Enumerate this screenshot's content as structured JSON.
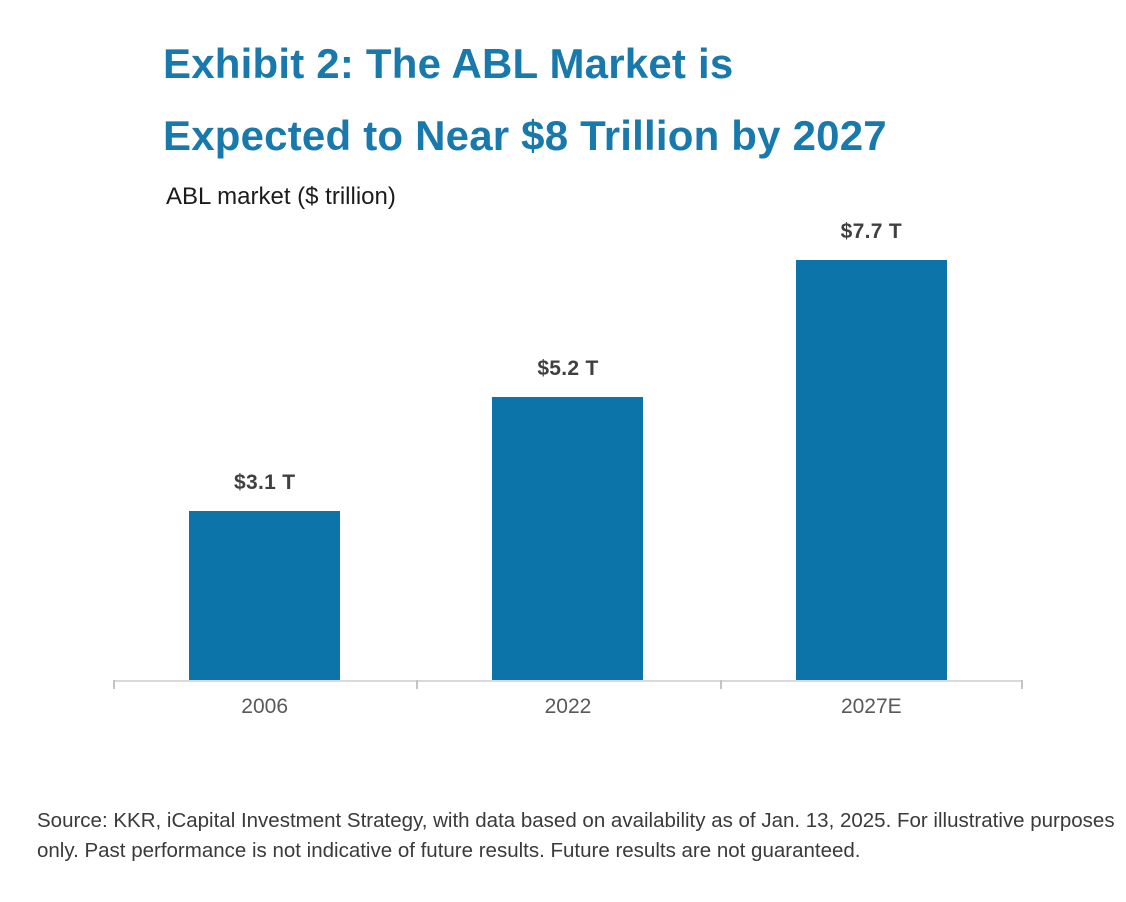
{
  "header": {
    "title_line1": "Exhibit 2: The ABL Market is",
    "title_line2": "Expected to Near $8 Trillion by 2027"
  },
  "chart_data": {
    "type": "bar",
    "title": "Exhibit 2: The ABL Market is Expected to Near $8 Trillion by 2027",
    "subtitle": "ABL market ($ trillion)",
    "categories": [
      "2006",
      "2022",
      "2027E"
    ],
    "values": [
      3.1,
      5.2,
      7.7
    ],
    "value_labels": [
      "$3.1 T",
      "$5.2 T",
      "$7.7 T"
    ],
    "xlabel": "",
    "ylabel": "ABL market ($ trillion)",
    "ylim": [
      0,
      8
    ],
    "grid": false,
    "legend": "none",
    "bar_color": "#0d74a9"
  },
  "footer": {
    "source_text": "Source: KKR, iCapital Investment Strategy, with data based on availability as of Jan. 13, 2025. For illustrative purposes only. Past performance is not indicative of future results. Future results are not guaranteed."
  },
  "colors": {
    "title": "#1879ac",
    "bar": "#0d74a9",
    "value_label": "#404040",
    "axis_label": "#595959",
    "axis_line": "#d9d9d9",
    "source_text": "#3a3a3a"
  }
}
